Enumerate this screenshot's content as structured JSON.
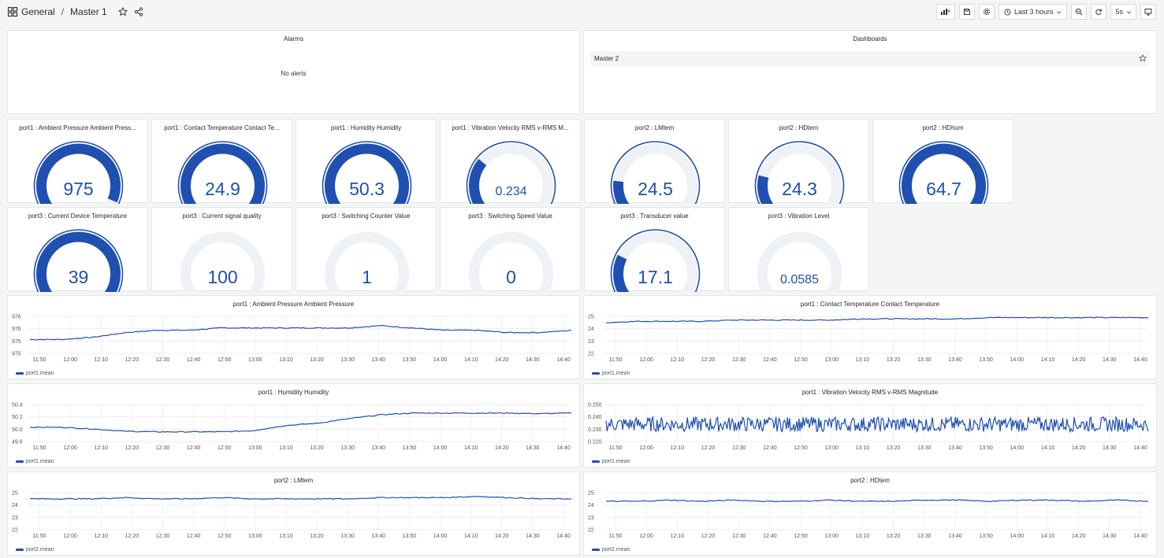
{
  "breadcrumb": {
    "folder": "General",
    "separator": "/",
    "dashboard": "Master 1"
  },
  "toolbar": {
    "time_range": "Last 3 hours",
    "refresh": "5s"
  },
  "alarms": {
    "title": "Alarms",
    "empty_text": "No alerts"
  },
  "dashboards": {
    "title": "Dashboards",
    "items": [
      {
        "label": "Master 2"
      }
    ]
  },
  "colors": {
    "accent": "#1f4fb0",
    "track": "#eef1f6"
  },
  "gauges": [
    {
      "title": "port1 : Ambient Pressure Ambient Press...",
      "value": "975",
      "fraction": 0.95
    },
    {
      "title": "port1 : Contact Temperature Contact Te...",
      "value": "24.9",
      "fraction": 1.0
    },
    {
      "title": "port1 : Humidity Humidity",
      "value": "50.3",
      "fraction": 1.0
    },
    {
      "title": "port1 : Vibration Velocity RMS v-RMS M...",
      "value": "0.234",
      "fraction": 0.3
    },
    {
      "title": "port2 : LMtem",
      "value": "24.5",
      "fraction": 0.17
    },
    {
      "title": "port2 : HDtem",
      "value": "24.3",
      "fraction": 0.2
    },
    {
      "title": "port2 : HDhum",
      "value": "64.7",
      "fraction": 1.0
    },
    {
      "title": "port3 : Current Device Temperature",
      "value": "39",
      "fraction": 1.0
    },
    {
      "title": "port3 : Current signal quality",
      "value": "100",
      "fraction": 0.0
    },
    {
      "title": "port3 : Switching Counter Value",
      "value": "1",
      "fraction": 0.0
    },
    {
      "title": "port3 : Switching Speed Value",
      "value": "0",
      "fraction": 0.0
    },
    {
      "title": "port3 : Transducer value",
      "value": "17.1",
      "fraction": 0.25
    },
    {
      "title": "port3 : Vibration Level",
      "value": "0.0585",
      "fraction": 0.0
    }
  ],
  "timeseries": [
    {
      "title": "port1 : Ambient Pressure Ambient Pressure",
      "legend": "port1.mean",
      "yticks": [
        "976",
        "976",
        "975",
        "975"
      ],
      "ymin": 974.6,
      "ymax": 976.2,
      "x": [
        "11:50",
        "12:00",
        "12:10",
        "12:20",
        "12:30",
        "12:40",
        "12:50",
        "13:00",
        "13:10",
        "13:20",
        "13:30",
        "13:40",
        "13:50",
        "14:00",
        "14:10",
        "14:20",
        "14:30",
        "14:40"
      ],
      "values": [
        975.2,
        975.2,
        975.3,
        975.5,
        975.6,
        975.6,
        975.7,
        975.7,
        975.7,
        975.7,
        975.7,
        975.8,
        975.7,
        975.6,
        975.6,
        975.5,
        975.5,
        975.6
      ]
    },
    {
      "title": "port1 : Contact Temperature Contact Temperature",
      "legend": "port1.mean",
      "yticks": [
        "25",
        "24",
        "23",
        "22"
      ],
      "ymin": 22,
      "ymax": 25,
      "x": [
        "11:50",
        "12:00",
        "12:10",
        "12:20",
        "12:30",
        "12:40",
        "12:50",
        "13:00",
        "13:10",
        "13:20",
        "13:30",
        "13:40",
        "13:50",
        "14:00",
        "14:10",
        "14:20",
        "14:30",
        "14:40"
      ],
      "values": [
        24.5,
        24.6,
        24.6,
        24.6,
        24.7,
        24.7,
        24.7,
        24.7,
        24.8,
        24.8,
        24.8,
        24.8,
        24.9,
        24.9,
        24.9,
        24.9,
        24.9,
        24.9
      ]
    },
    {
      "title": "port1 : Humidity Humidity",
      "legend": "port1.mean",
      "yticks": [
        "50.4",
        "50.2",
        "50.0",
        "49.8"
      ],
      "ymin": 49.8,
      "ymax": 50.45,
      "x": [
        "11:50",
        "12:00",
        "12:10",
        "12:20",
        "12:30",
        "12:40",
        "12:50",
        "13:00",
        "13:10",
        "13:20",
        "13:30",
        "13:40",
        "13:50",
        "14:00",
        "14:10",
        "14:20",
        "14:30",
        "14:40"
      ],
      "values": [
        50.05,
        50.05,
        50.02,
        49.98,
        49.97,
        49.97,
        49.97,
        49.99,
        50.08,
        50.12,
        50.2,
        50.27,
        50.3,
        50.3,
        50.3,
        50.3,
        50.29,
        50.3
      ]
    },
    {
      "title": "port1 : Vibration Velocity RMS v-RMS Magnitude",
      "legend": "port1.mean",
      "yticks": [
        "0.250",
        "0.240",
        "0.230",
        "0.220"
      ],
      "ymin": 0.22,
      "ymax": 0.25,
      "x": [
        "11:50",
        "12:00",
        "12:10",
        "12:20",
        "12:30",
        "12:40",
        "12:50",
        "13:00",
        "13:10",
        "13:20",
        "13:30",
        "13:40",
        "13:50",
        "14:00",
        "14:10",
        "14:20",
        "14:30",
        "14:40"
      ],
      "values": [
        0.234,
        0.234,
        0.234,
        0.234,
        0.234,
        0.234,
        0.234,
        0.234,
        0.234,
        0.234,
        0.234,
        0.234,
        0.234,
        0.234,
        0.234,
        0.234,
        0.234,
        0.234
      ]
    },
    {
      "title": "port2 : LMtem",
      "legend": "port2.mean",
      "yticks": [
        "25",
        "24",
        "23",
        "22"
      ],
      "ymin": 22,
      "ymax": 25,
      "x": [
        "11:50",
        "12:00",
        "12:10",
        "12:20",
        "12:30",
        "12:40",
        "12:50",
        "13:00",
        "13:10",
        "13:20",
        "13:30",
        "13:40",
        "13:50",
        "14:00",
        "14:10",
        "14:20",
        "14:30",
        "14:40"
      ],
      "values": [
        24.5,
        24.5,
        24.5,
        24.6,
        24.5,
        24.5,
        24.6,
        24.5,
        24.5,
        24.5,
        24.5,
        24.6,
        24.6,
        24.6,
        24.7,
        24.6,
        24.5,
        24.5
      ]
    },
    {
      "title": "port2 : HDtem",
      "legend": "port2.mean",
      "yticks": [
        "25",
        "24",
        "23",
        "22"
      ],
      "ymin": 22,
      "ymax": 25,
      "x": [
        "11:50",
        "12:00",
        "12:10",
        "12:20",
        "12:30",
        "12:40",
        "12:50",
        "13:00",
        "13:10",
        "13:20",
        "13:30",
        "13:40",
        "13:50",
        "14:00",
        "14:10",
        "14:20",
        "14:30",
        "14:40"
      ],
      "values": [
        24.3,
        24.3,
        24.4,
        24.3,
        24.4,
        24.3,
        24.3,
        24.4,
        24.3,
        24.3,
        24.4,
        24.4,
        24.3,
        24.4,
        24.4,
        24.3,
        24.4,
        24.3
      ]
    }
  ]
}
